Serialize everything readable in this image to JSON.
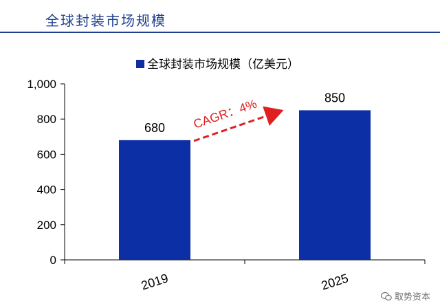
{
  "header": {
    "title": "全球封装市场规模"
  },
  "watermark": {
    "text": "取势资本",
    "icon": "wechat-icon"
  },
  "colors": {
    "accent": "#1f3f8f",
    "bar": "#0d2fa6",
    "cagr": "#e02020"
  },
  "chart_data": {
    "type": "bar",
    "title": "",
    "xlabel": "",
    "ylabel": "",
    "categories": [
      "2019",
      "2025"
    ],
    "series": [
      {
        "name": "全球封装市场规模（亿美元）",
        "values": [
          680,
          850
        ]
      }
    ],
    "data_labels": [
      "680",
      "850"
    ],
    "ylim": [
      0,
      1000
    ],
    "yticks": [
      0,
      200,
      400,
      600,
      800,
      1000
    ],
    "ytick_labels": [
      "0",
      "200",
      "400",
      "600",
      "800",
      "1,000"
    ],
    "grid": false,
    "legend": "top-center",
    "annotation": {
      "text": "CAGR：4%",
      "from": "2019",
      "to": "2025"
    }
  }
}
